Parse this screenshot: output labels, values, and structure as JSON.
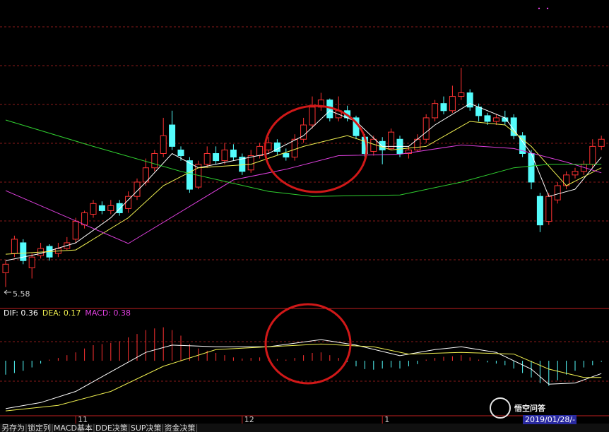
{
  "chart_data": [
    {
      "type": "candlestick",
      "up_color": "#ff3232",
      "down_color": "#54fcfc",
      "ylim": [
        5.3,
        9.6
      ],
      "annotation": "5.58",
      "categories": [
        null,
        null,
        null,
        null,
        null,
        null,
        null,
        null,
        "11",
        null,
        null,
        null,
        null,
        null,
        null,
        null,
        null,
        null,
        null,
        null,
        null,
        null,
        null,
        null,
        null,
        null,
        null,
        "12",
        null,
        null,
        null,
        null,
        null,
        null,
        null,
        null,
        null,
        null,
        null,
        null,
        null,
        null,
        null,
        "1",
        null,
        null,
        null,
        null,
        null,
        null,
        null,
        null,
        null,
        null,
        null,
        null,
        null,
        null,
        null,
        null,
        null,
        null,
        null,
        null,
        null,
        null,
        null,
        null,
        null
      ],
      "candles": [
        [
          5.78,
          5.9,
          5.95,
          5.58
        ],
        [
          6.05,
          6.25,
          6.3,
          6.0
        ],
        [
          6.2,
          5.95,
          6.25,
          5.9
        ],
        [
          5.85,
          6.0,
          6.05,
          5.7
        ],
        [
          6.02,
          6.12,
          6.2,
          5.98
        ],
        [
          6.15,
          6.0,
          6.18,
          5.95
        ],
        [
          6.05,
          6.12,
          6.2,
          6.0
        ],
        [
          6.12,
          6.2,
          6.28,
          6.1
        ],
        [
          6.25,
          6.5,
          6.55,
          6.2
        ],
        [
          6.45,
          6.62,
          6.65,
          6.4
        ],
        [
          6.6,
          6.75,
          6.8,
          6.55
        ],
        [
          6.72,
          6.65,
          6.78,
          6.6
        ],
        [
          6.65,
          6.72,
          6.8,
          6.6
        ],
        [
          6.75,
          6.62,
          6.8,
          6.58
        ],
        [
          6.68,
          6.85,
          6.92,
          6.62
        ],
        [
          6.85,
          7.05,
          7.1,
          6.8
        ],
        [
          7.05,
          7.25,
          7.38,
          7.0
        ],
        [
          7.25,
          7.45,
          7.5,
          7.2
        ],
        [
          7.45,
          7.7,
          7.95,
          7.4
        ],
        [
          7.85,
          7.55,
          8.05,
          7.5
        ],
        [
          7.5,
          7.42,
          7.55,
          7.35
        ],
        [
          7.35,
          6.95,
          7.4,
          6.9
        ],
        [
          6.98,
          7.3,
          7.35,
          6.95
        ],
        [
          7.3,
          7.45,
          7.55,
          7.25
        ],
        [
          7.45,
          7.35,
          7.55,
          7.3
        ],
        [
          7.35,
          7.5,
          7.6,
          7.3
        ],
        [
          7.5,
          7.4,
          7.58,
          7.35
        ],
        [
          7.4,
          7.2,
          7.45,
          7.15
        ],
        [
          7.22,
          7.42,
          7.5,
          7.18
        ],
        [
          7.42,
          7.55,
          7.6,
          7.38
        ],
        [
          7.5,
          7.6,
          7.68,
          7.45
        ],
        [
          7.6,
          7.48,
          7.65,
          7.42
        ],
        [
          7.45,
          7.4,
          7.52,
          7.35
        ],
        [
          7.4,
          7.65,
          7.72,
          7.35
        ],
        [
          7.65,
          7.85,
          7.95,
          7.6
        ],
        [
          7.85,
          8.1,
          8.25,
          7.8
        ],
        [
          8.1,
          8.2,
          8.3,
          8.05
        ],
        [
          8.2,
          7.95,
          8.22,
          7.9
        ],
        [
          7.95,
          8.05,
          8.25,
          7.9
        ],
        [
          8.05,
          7.95,
          8.12,
          7.9
        ],
        [
          7.95,
          7.7,
          7.98,
          7.65
        ],
        [
          7.68,
          7.45,
          7.72,
          7.4
        ],
        [
          7.48,
          7.65,
          7.7,
          7.42
        ],
        [
          7.62,
          7.5,
          7.68,
          7.3
        ],
        [
          7.52,
          7.75,
          7.8,
          7.5
        ],
        [
          7.65,
          7.45,
          7.7,
          7.4
        ],
        [
          7.45,
          7.5,
          7.55,
          7.38
        ],
        [
          7.5,
          7.65,
          7.72,
          7.48
        ],
        [
          7.65,
          7.95,
          8.0,
          7.6
        ],
        [
          7.95,
          8.15,
          8.2,
          7.9
        ],
        [
          8.15,
          8.05,
          8.25,
          8.0
        ],
        [
          8.05,
          8.25,
          8.4,
          8.02
        ],
        [
          8.25,
          8.3,
          8.65,
          8.2
        ],
        [
          8.3,
          8.1,
          8.35,
          8.05
        ],
        [
          8.1,
          7.98,
          8.15,
          7.9
        ],
        [
          7.98,
          7.9,
          8.02,
          7.85
        ],
        [
          7.9,
          7.95,
          8.0,
          7.85
        ],
        [
          7.95,
          7.9,
          8.05,
          7.85
        ],
        [
          7.95,
          7.7,
          8.0,
          7.65
        ],
        [
          7.7,
          7.45,
          7.75,
          7.4
        ],
        [
          7.45,
          7.05,
          7.5,
          6.95
        ],
        [
          6.85,
          6.45,
          6.9,
          6.35
        ],
        [
          6.5,
          6.85,
          6.9,
          6.45
        ],
        [
          6.8,
          7.0,
          7.05,
          6.75
        ],
        [
          7.0,
          7.15,
          7.2,
          6.95
        ],
        [
          7.15,
          7.2,
          7.25,
          7.1
        ],
        [
          7.2,
          7.3,
          7.35,
          7.15
        ],
        [
          7.3,
          7.55,
          7.65,
          7.25
        ],
        [
          7.55,
          7.65,
          7.7,
          7.5
        ]
      ],
      "lines": [
        {
          "color": "#ffffff",
          "x": [
            0,
            4,
            8,
            12,
            16,
            19,
            22,
            26,
            30,
            34,
            37,
            40,
            43,
            46,
            49,
            53,
            57,
            60,
            62,
            65,
            68
          ],
          "values": [
            5.95,
            6.05,
            6.2,
            6.55,
            7.05,
            7.45,
            7.25,
            7.35,
            7.45,
            7.7,
            8.05,
            7.9,
            7.55,
            7.55,
            7.85,
            8.15,
            7.95,
            7.45,
            6.85,
            6.95,
            7.4
          ]
        },
        {
          "color": "#f0f050",
          "x": [
            0,
            8,
            14,
            18,
            22,
            28,
            34,
            39,
            44,
            48,
            53,
            57,
            60,
            64,
            68
          ],
          "values": [
            6.04,
            6.1,
            6.55,
            7.0,
            7.25,
            7.3,
            7.55,
            7.7,
            7.5,
            7.55,
            7.9,
            7.85,
            7.55,
            7.0,
            7.25
          ]
        },
        {
          "color": "#e040e0",
          "x": [
            0,
            14,
            26,
            32,
            38,
            45,
            52,
            58,
            64,
            68
          ],
          "values": [
            6.93,
            6.19,
            7.08,
            7.23,
            7.42,
            7.44,
            7.57,
            7.52,
            7.33,
            7.18
          ]
        },
        {
          "color": "#30d030",
          "x": [
            0,
            10,
            20,
            30,
            35,
            45,
            52,
            58,
            62,
            68
          ],
          "values": [
            7.92,
            7.55,
            7.2,
            6.92,
            6.85,
            6.87,
            7.05,
            7.25,
            7.3,
            7.3
          ]
        }
      ]
    },
    {
      "type": "macd",
      "ylim": [
        -1.0,
        0.9
      ],
      "legend": [
        {
          "text": "DIF: 0.36",
          "color": "#ffffff"
        },
        {
          "text": "DEA: 0.17",
          "color": "#f0f050"
        },
        {
          "text": "MACD: 0.38",
          "color": "#e040e0"
        }
      ],
      "up_color": "#ff3232",
      "down_color": "#54fcfc",
      "values": [
        -0.25,
        -0.22,
        -0.18,
        -0.12,
        -0.05,
        0.02,
        0.05,
        0.1,
        0.15,
        0.22,
        0.28,
        0.3,
        0.32,
        0.35,
        0.42,
        0.48,
        0.55,
        0.58,
        0.6,
        0.55,
        0.45,
        0.3,
        0.22,
        0.18,
        0.14,
        0.1,
        0.06,
        0.04,
        0.05,
        0.06,
        0.05,
        0.03,
        0.02,
        0.05,
        0.1,
        0.14,
        0.15,
        0.1,
        0.05,
        -0.02,
        -0.1,
        -0.15,
        -0.16,
        -0.14,
        -0.12,
        -0.14,
        -0.1,
        -0.06,
        0.02,
        0.05,
        0.07,
        0.08,
        0.1,
        0.06,
        0.02,
        -0.03,
        -0.05,
        -0.08,
        -0.14,
        -0.22,
        -0.3,
        -0.4,
        -0.45,
        -0.35,
        -0.25,
        -0.18,
        -0.12,
        -0.08,
        -0.02
      ],
      "lines": [
        {
          "color": "#ffffff",
          "x": [
            0,
            4,
            8,
            12,
            16,
            19,
            24,
            30,
            36,
            40,
            45,
            49,
            52,
            56,
            60,
            62,
            65,
            68
          ],
          "values": [
            -0.86,
            -0.75,
            -0.55,
            -0.2,
            0.15,
            0.28,
            0.25,
            0.25,
            0.38,
            0.28,
            0.09,
            0.2,
            0.25,
            0.15,
            -0.15,
            -0.42,
            -0.4,
            -0.23
          ]
        },
        {
          "color": "#f0f050",
          "x": [
            0,
            6,
            12,
            18,
            24,
            30,
            36,
            42,
            46,
            52,
            58,
            62,
            66,
            68
          ],
          "values": [
            -0.9,
            -0.8,
            -0.55,
            -0.1,
            0.2,
            0.25,
            0.3,
            0.25,
            0.12,
            0.15,
            0.12,
            -0.15,
            -0.3,
            -0.3
          ]
        }
      ]
    }
  ],
  "tabs": [
    "另存为",
    "锁定列",
    "MACD基本",
    "DDE决策",
    "SUP决策",
    "资金决策"
  ],
  "date_box": "2019/01/28/-",
  "watermark": "悟空问答"
}
